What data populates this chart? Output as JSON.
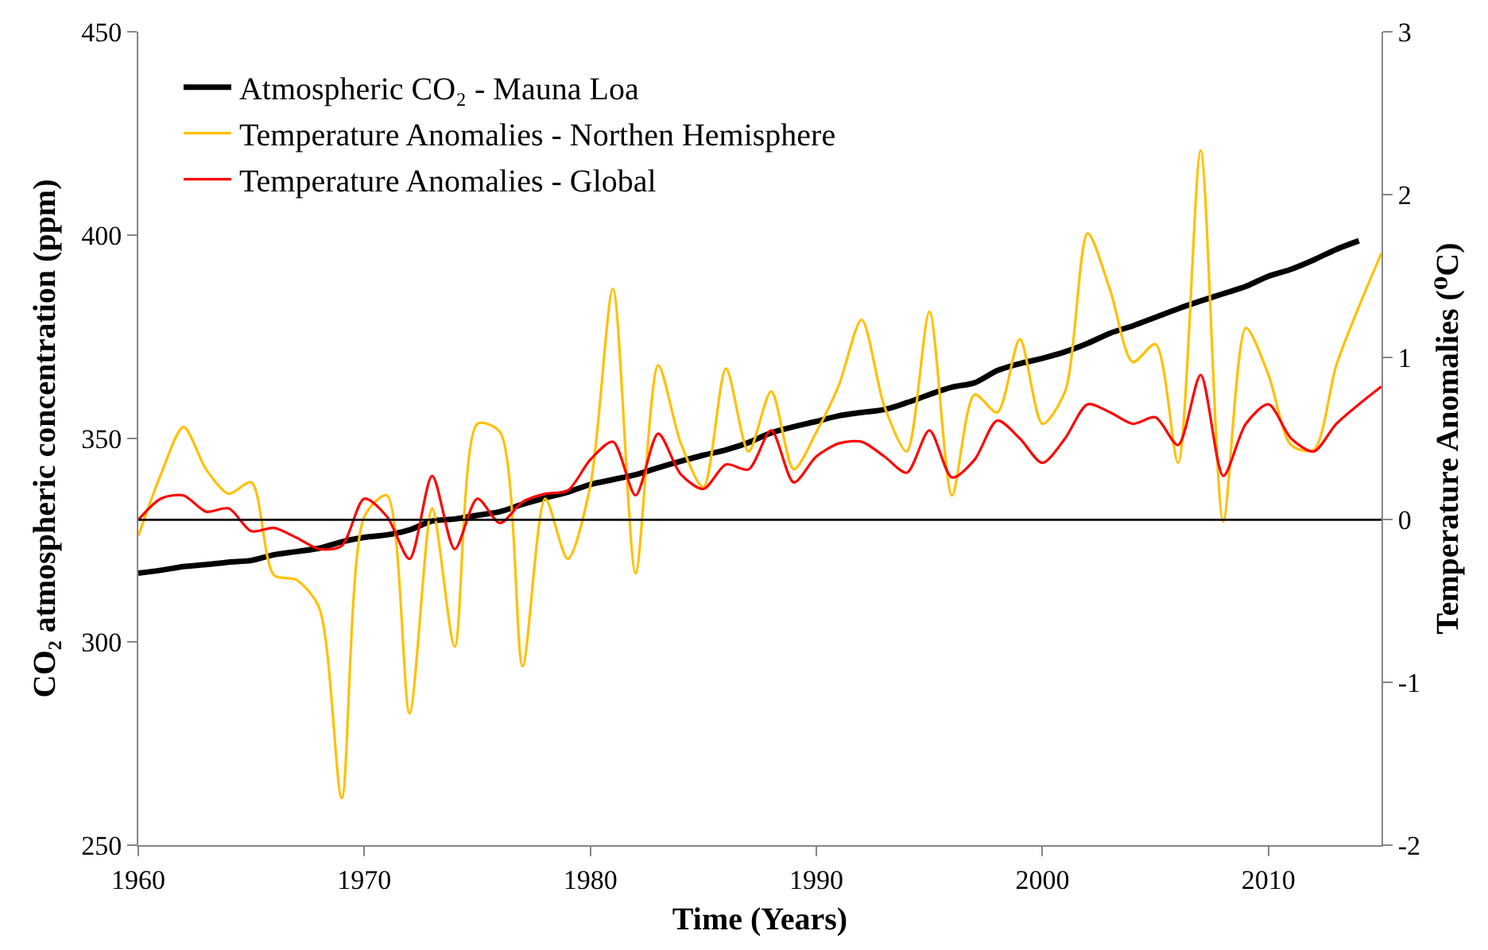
{
  "chart_data": {
    "type": "line",
    "xlabel": "Time (Years)",
    "ylabel": "CO₂ atmospheric concentration (ppm)",
    "y2label": "Temperature Anomalies (⁰C)",
    "x": [
      1960,
      1961,
      1962,
      1963,
      1964,
      1965,
      1966,
      1967,
      1968,
      1969,
      1970,
      1971,
      1972,
      1973,
      1974,
      1975,
      1976,
      1977,
      1978,
      1979,
      1980,
      1981,
      1982,
      1983,
      1984,
      1985,
      1986,
      1987,
      1988,
      1989,
      1990,
      1991,
      1992,
      1993,
      1994,
      1995,
      1996,
      1997,
      1998,
      1999,
      2000,
      2001,
      2002,
      2003,
      2004,
      2005,
      2006,
      2007,
      2008,
      2009,
      2010,
      2011,
      2012,
      2013,
      2014,
      2015
    ],
    "series": [
      {
        "name": "Atmospheric CO₂ - Mauna Loa",
        "color": "#000000",
        "values": [
          316.9,
          317.6,
          318.5,
          319.0,
          319.6,
          320.0,
          321.4,
          322.2,
          323.0,
          324.6,
          325.7,
          326.3,
          327.5,
          329.7,
          330.2,
          331.1,
          332.0,
          333.8,
          335.4,
          336.8,
          338.7,
          339.9,
          341.1,
          342.8,
          344.4,
          345.9,
          347.2,
          349.0,
          351.4,
          352.9,
          354.2,
          355.6,
          356.4,
          357.1,
          358.8,
          360.8,
          362.6,
          363.7,
          366.7,
          368.4,
          369.7,
          371.3,
          373.4,
          375.9,
          377.7,
          379.8,
          381.9,
          383.8,
          385.6,
          387.4,
          389.9,
          391.6,
          393.9,
          396.5,
          398.6,
          null
        ]
      },
      {
        "name": "Temperature Anomalies - Northen Hemisphere",
        "color": "#ffc000",
        "axis": "y2",
        "values": [
          -0.1,
          0.28,
          0.57,
          0.31,
          0.16,
          0.23,
          -0.34,
          -0.37,
          -0.54,
          -1.71,
          0.02,
          0.15,
          -1.19,
          0.07,
          -0.78,
          0.59,
          0.54,
          -0.9,
          0.13,
          -0.24,
          0.21,
          1.42,
          -0.33,
          0.95,
          0.47,
          0.2,
          0.93,
          0.42,
          0.79,
          0.31,
          0.54,
          0.83,
          1.23,
          0.7,
          0.42,
          1.28,
          0.15,
          0.77,
          0.66,
          1.11,
          0.59,
          0.79,
          1.76,
          1.41,
          0.97,
          1.08,
          0.35,
          2.27,
          -0.01,
          1.18,
          0.89,
          0.46,
          0.43,
          0.95,
          1.31,
          1.64
        ]
      },
      {
        "name": "Temperature Anomalies - Global",
        "color": "#ff0000",
        "axis": "y2",
        "values": [
          0,
          0.13,
          0.15,
          0.05,
          0.07,
          -0.07,
          -0.05,
          -0.11,
          -0.18,
          -0.16,
          0.13,
          0.02,
          -0.24,
          0.27,
          -0.18,
          0.13,
          -0.02,
          0.11,
          0.16,
          0.18,
          0.37,
          0.48,
          0.15,
          0.53,
          0.28,
          0.19,
          0.34,
          0.31,
          0.55,
          0.23,
          0.39,
          0.47,
          0.48,
          0.39,
          0.29,
          0.55,
          0.26,
          0.37,
          0.61,
          0.5,
          0.35,
          0.5,
          0.71,
          0.66,
          0.59,
          0.63,
          0.46,
          0.89,
          0.27,
          0.59,
          0.71,
          0.5,
          0.42,
          0.59,
          0.71,
          0.82
        ]
      }
    ],
    "xlim": [
      1960,
      2015
    ],
    "xticks": [
      1960,
      1970,
      1980,
      1990,
      2000,
      2010
    ],
    "ylim": [
      250,
      450
    ],
    "yticks": [
      250,
      300,
      350,
      400,
      450
    ],
    "y2lim": [
      -2,
      3
    ],
    "y2ticks": [
      -2,
      -1,
      0,
      1,
      2,
      3
    ],
    "ref_lines": [
      {
        "axis": "y2",
        "value": 0,
        "color": "#000000"
      }
    ],
    "grid": false,
    "legend": "top left",
    "marker": "none",
    "line_style": "solid"
  }
}
